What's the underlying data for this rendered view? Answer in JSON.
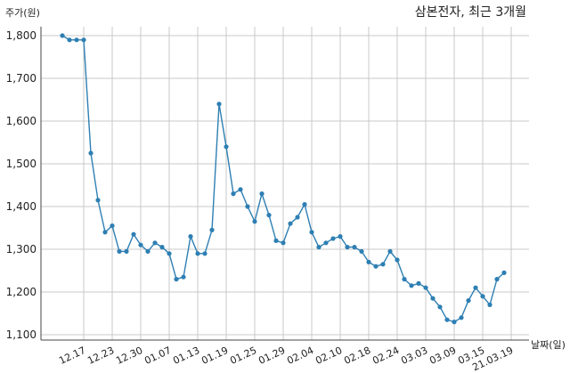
{
  "chart_data": {
    "type": "line",
    "title": "삼본전자, 최근 3개월",
    "ylabel": "주가(원)",
    "xlabel": "날짜(일)",
    "ylim": [
      1100,
      1800
    ],
    "yticks": [
      1100,
      1200,
      1300,
      1400,
      1500,
      1600,
      1700,
      1800
    ],
    "ytick_labels": [
      "1,100",
      "1,200",
      "1,300",
      "1,400",
      "1,500",
      "1,600",
      "1,700",
      "1,800"
    ],
    "xtick_labels": [
      "12.17",
      "12.23",
      "12.30",
      "01.07",
      "01.13",
      "01.19",
      "01.25",
      "01.29",
      "02.04",
      "02.10",
      "02.18",
      "02.24",
      "03.03",
      "03.09",
      "03.15",
      "21.03.19"
    ],
    "xtick_indices": [
      3,
      7,
      11,
      15,
      19,
      23,
      27,
      31,
      35,
      39,
      43,
      47,
      51,
      55,
      59,
      63
    ],
    "grid": true,
    "series": [
      {
        "color": "#2e7fb3",
        "values": [
          1800,
          1790,
          1790,
          1790,
          1525,
          1415,
          1340,
          1355,
          1295,
          1295,
          1335,
          1310,
          1295,
          1315,
          1305,
          1290,
          1230,
          1235,
          1330,
          1290,
          1290,
          1345,
          1640,
          1540,
          1430,
          1440,
          1400,
          1365,
          1430,
          1380,
          1320,
          1315,
          1360,
          1375,
          1405,
          1340,
          1305,
          1315,
          1325,
          1330,
          1305,
          1305,
          1295,
          1270,
          1260,
          1265,
          1295,
          1275,
          1230,
          1215,
          1220,
          1210,
          1185,
          1165,
          1135,
          1130,
          1140,
          1180,
          1210,
          1190,
          1170,
          1230,
          1245
        ]
      }
    ]
  }
}
